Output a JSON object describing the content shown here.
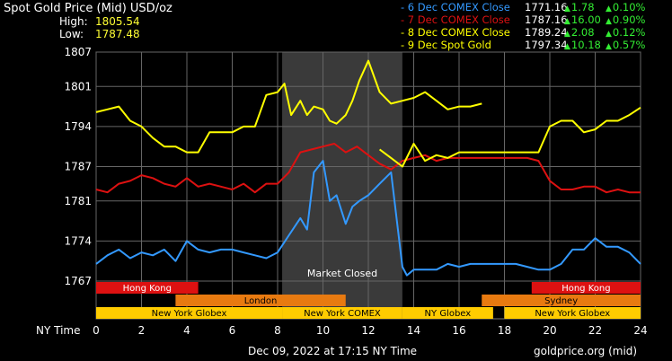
{
  "header": {
    "title": "Spot Gold Price (Mid) USD/oz",
    "high_label": "High:",
    "high_value": "1805.54",
    "low_label": "Low:",
    "low_value": "1787.48"
  },
  "legend": [
    {
      "name": "- 6 Dec COMEX Close",
      "price": "1771.16",
      "change": "1.78",
      "pct": "0.10%",
      "color": "#3399ff"
    },
    {
      "name": "- 7 Dec COMEX Close",
      "price": "1787.16",
      "change": "16.00",
      "pct": "0.90%",
      "color": "#dd1111"
    },
    {
      "name": "- 8 Dec COMEX Close",
      "price": "1789.24",
      "change": "2.08",
      "pct": "0.12%",
      "color": "#ffff00"
    },
    {
      "name": "- 9 Dec Spot Gold",
      "price": "1797.34",
      "change": "10.18",
      "pct": "0.57%",
      "color": "#ffff00"
    }
  ],
  "footer": {
    "date": "Dec 09, 2022 at 17:15 NY Time",
    "source": "goldprice.org (mid)"
  },
  "chart_data": {
    "type": "line",
    "xlabel": "NY Time",
    "xlim": [
      0,
      24
    ],
    "ylim": [
      1763,
      1807
    ],
    "x_ticks": [
      0,
      2,
      4,
      6,
      8,
      10,
      12,
      14,
      16,
      18,
      20,
      22,
      24
    ],
    "y_ticks": [
      1767,
      1774,
      1781,
      1787,
      1794,
      1801,
      1807
    ],
    "grid": true,
    "shaded_region": {
      "x": [
        8.2,
        13.5
      ],
      "label": "Market Closed",
      "color": "#3a3a3a"
    },
    "sessions": [
      {
        "name": "Hong Kong",
        "x": [
          0,
          4.5
        ],
        "row": 0,
        "color": "#dd1111"
      },
      {
        "name": "Hong Kong",
        "x": [
          19.2,
          24
        ],
        "row": 0,
        "color": "#dd1111"
      },
      {
        "name": "London",
        "x": [
          3.5,
          11
        ],
        "row": 1,
        "color": "#e87a10"
      },
      {
        "name": "Sydney",
        "x": [
          17,
          24
        ],
        "row": 1,
        "color": "#e87a10"
      },
      {
        "name": "New York Globex",
        "x": [
          0,
          8.2
        ],
        "row": 2,
        "color": "#ffcc00"
      },
      {
        "name": "New York COMEX",
        "x": [
          8.2,
          13.5
        ],
        "row": 2,
        "color": "#ffcc00"
      },
      {
        "name": "NY Globex",
        "x": [
          13.5,
          17.5
        ],
        "row": 2,
        "color": "#ffcc00"
      },
      {
        "name": "New York Globex",
        "x": [
          18,
          24
        ],
        "row": 2,
        "color": "#ffcc00"
      }
    ],
    "series": [
      {
        "name": "6 Dec COMEX Close",
        "color": "#3399ff",
        "x": [
          0,
          0.5,
          1,
          1.5,
          2,
          2.5,
          3,
          3.5,
          4,
          4.5,
          5,
          5.5,
          6,
          6.5,
          7,
          7.5,
          8,
          8.5,
          9,
          9.3,
          9.6,
          10,
          10.3,
          10.6,
          11,
          11.3,
          11.6,
          12,
          12.5,
          13,
          13.5,
          13.7,
          14,
          14.5,
          15,
          15.5,
          16,
          16.5,
          17,
          17.5,
          18,
          18.5,
          19,
          19.5,
          20,
          20.5,
          21,
          21.5,
          22,
          22.5,
          23,
          23.5,
          24
        ],
        "y": [
          1770,
          1771.5,
          1772.5,
          1771,
          1772,
          1771.5,
          1772.5,
          1770.5,
          1774,
          1772.5,
          1772,
          1772.5,
          1772.5,
          1772,
          1771.5,
          1771,
          1772,
          1775,
          1778,
          1776,
          1786,
          1788,
          1781,
          1782,
          1777,
          1780,
          1781,
          1782,
          1784,
          1786,
          1769.5,
          1768,
          1769,
          1769,
          1769,
          1770,
          1769.5,
          1770,
          1770,
          1770,
          1770,
          1770,
          1769.5,
          1769,
          1769,
          1770,
          1772.5,
          1772.5,
          1774.5,
          1773,
          1773,
          1772,
          1770
        ]
      },
      {
        "name": "7 Dec COMEX Close",
        "color": "#dd1111",
        "x": [
          0,
          0.5,
          1,
          1.5,
          2,
          2.5,
          3,
          3.5,
          4,
          4.5,
          5,
          5.5,
          6,
          6.5,
          7,
          7.5,
          8,
          8.5,
          9,
          9.5,
          10,
          10.5,
          11,
          11.5,
          12,
          12.5,
          13,
          13.5,
          14,
          14.5,
          15,
          15.5,
          16,
          16.5,
          17,
          17.5,
          18,
          18.5,
          19,
          19.5,
          20,
          20.5,
          21,
          21.5,
          22,
          22.5,
          23,
          23.5,
          24
        ],
        "y": [
          1783,
          1782.5,
          1784,
          1784.5,
          1785.5,
          1785,
          1784,
          1783.5,
          1785,
          1783.5,
          1784,
          1783.5,
          1783,
          1784,
          1782.5,
          1784,
          1784,
          1786,
          1789.5,
          1790,
          1790.5,
          1791,
          1789.5,
          1790.5,
          1789,
          1787.5,
          1786.5,
          1788,
          1788.5,
          1789,
          1788,
          1788.5,
          1788.5,
          1788.5,
          1788.5,
          1788.5,
          1788.5,
          1788.5,
          1788.5,
          1788,
          1784.5,
          1783,
          1783,
          1783.5,
          1783.5,
          1782.5,
          1783,
          1782.5,
          1782.5
        ]
      },
      {
        "name": "8 Dec COMEX Close",
        "color": "#ffff00",
        "x": [
          0,
          0.5,
          1,
          1.5,
          2,
          2.5,
          3,
          3.5,
          4,
          4.5,
          5,
          5.5,
          6,
          6.5,
          7,
          7.5,
          8,
          8.3,
          8.6,
          9,
          9.3,
          9.6,
          10,
          10.3,
          10.6,
          11,
          11.3,
          11.6,
          12,
          12.5,
          13,
          13.5,
          14,
          14.5,
          15,
          15.5,
          16,
          16.5,
          17
        ],
        "y": [
          1796.5,
          1797,
          1797.5,
          1795,
          1794,
          1792,
          1790.5,
          1790.5,
          1789.5,
          1789.5,
          1793,
          1793,
          1793,
          1794,
          1794,
          1799.5,
          1800,
          1801.5,
          1796,
          1798.5,
          1796,
          1797.5,
          1797,
          1795,
          1794.5,
          1796,
          1798.5,
          1802,
          1805.5,
          1800,
          1798,
          1798.5,
          1799,
          1800,
          1798.5,
          1797,
          1797.5,
          1797.5,
          1798
        ]
      },
      {
        "name": "9 Dec Spot Gold",
        "color": "#ffff00",
        "x": [
          12.5,
          13,
          13.5,
          14,
          14.5,
          15,
          15.5,
          16,
          16.5,
          17,
          17.5,
          18,
          18.5,
          19,
          19.5,
          20,
          20.5,
          21,
          21.5,
          22,
          22.5,
          23,
          23.5,
          24
        ],
        "y": [
          1790,
          1788.5,
          1787,
          1791,
          1788,
          1789,
          1788.5,
          1789.5,
          1789.5,
          1789.5,
          1789.5,
          1789.5,
          1789.5,
          1789.5,
          1789.5,
          1794,
          1795,
          1795,
          1793,
          1793.5,
          1795,
          1795,
          1796,
          1797.3
        ]
      }
    ]
  }
}
